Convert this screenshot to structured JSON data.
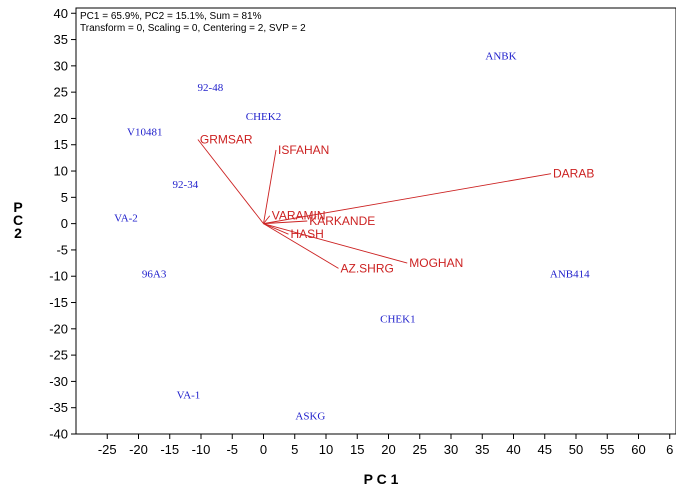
{
  "chart_data": {
    "type": "scatter",
    "subtype": "biplot",
    "info_lines": [
      "PC1 = 65.9%, PC2 = 15.1%, Sum = 81%",
      "Transform = 0, Scaling = 0, Centering = 2, SVP = 2"
    ],
    "xlabel": "P C 1",
    "ylabel_lines": [
      "P",
      "C",
      "2"
    ],
    "xlim": [
      -30,
      66
    ],
    "ylim": [
      -40,
      41
    ],
    "x_ticks": [
      "-25",
      "-20",
      "-15",
      "-10",
      "-5",
      "0",
      "5",
      "10",
      "15",
      "20",
      "25",
      "30",
      "35",
      "40",
      "45",
      "50",
      "55",
      "60",
      "6"
    ],
    "y_ticks": [
      "40",
      "35",
      "30",
      "25",
      "20",
      "15",
      "10",
      "5",
      "0",
      "-5",
      "-10",
      "-15",
      "-20",
      "-25",
      "-30",
      "-35",
      "-40"
    ],
    "genotype_color": "#2222cc",
    "environment_color": "#cc2222",
    "genotypes": [
      {
        "label": "ANBK",
        "x": 38,
        "y": 32
      },
      {
        "label": "92-48",
        "x": -8.5,
        "y": 26
      },
      {
        "label": "CHEK2",
        "x": 0,
        "y": 20.5
      },
      {
        "label": "V10481",
        "x": -19,
        "y": 17.5
      },
      {
        "label": "92-34",
        "x": -12.5,
        "y": 7.5
      },
      {
        "label": "VA-2",
        "x": -22,
        "y": 1.2
      },
      {
        "label": "96A3",
        "x": -17.5,
        "y": -9.5
      },
      {
        "label": "ANB414",
        "x": 49,
        "y": -9.5
      },
      {
        "label": "CHEK1",
        "x": 21.5,
        "y": -18
      },
      {
        "label": "VA-1",
        "x": -12,
        "y": -32.5
      },
      {
        "label": "ASKG",
        "x": 7.5,
        "y": -36.5
      }
    ],
    "environments": [
      {
        "label": "GRMSAR",
        "x": -10.5,
        "y": 16
      },
      {
        "label": "ISFAHAN",
        "x": 2,
        "y": 14
      },
      {
        "label": "DARAB",
        "x": 46,
        "y": 9.5
      },
      {
        "label": "VARAMIN",
        "x": 1,
        "y": 1.5
      },
      {
        "label": "KARKANDE",
        "x": 7,
        "y": 0.5
      },
      {
        "label": "HASH",
        "x": 4,
        "y": -2
      },
      {
        "label": "AZ.SHRG",
        "x": 12,
        "y": -8.5
      },
      {
        "label": "MOGHAN",
        "x": 23,
        "y": -7.5
      }
    ]
  }
}
